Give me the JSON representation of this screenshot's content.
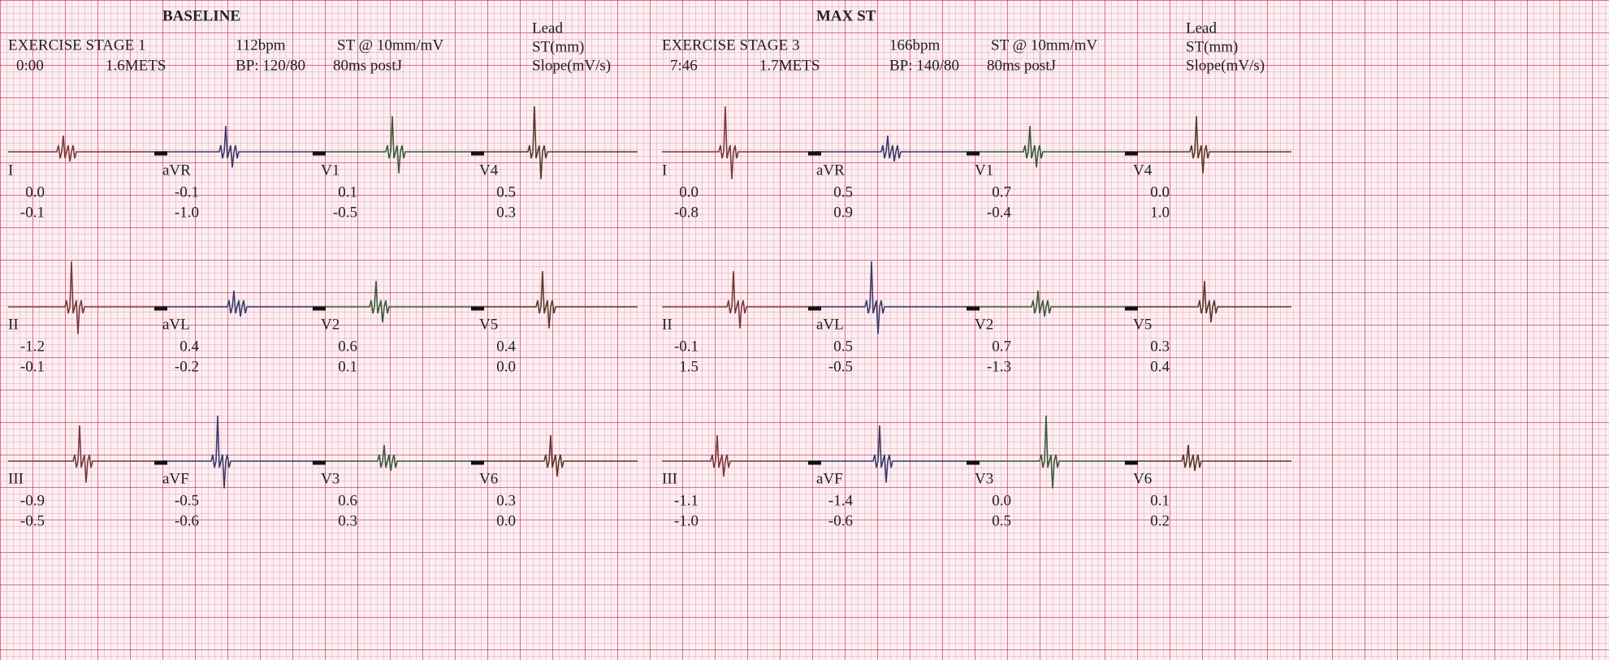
{
  "panels": [
    {
      "title": "BASELINE",
      "stage": "EXERCISE STAGE 1",
      "time": "0:00",
      "mets": "1.6METS",
      "hr": "112bpm",
      "bp": "BP: 120/80",
      "st_setting": "ST @ 10mm/mV",
      "post": "80ms postJ",
      "legend": [
        "Lead",
        "ST(mm)",
        "Slope(mV/s)"
      ],
      "leads": [
        {
          "name": "I",
          "st": "0.0",
          "slope": "-0.1"
        },
        {
          "name": "aVR",
          "st": "-0.1",
          "slope": "-1.0"
        },
        {
          "name": "V1",
          "st": "0.1",
          "slope": "-0.5"
        },
        {
          "name": "V4",
          "st": "0.5",
          "slope": "0.3"
        },
        {
          "name": "II",
          "st": "-1.2",
          "slope": "-0.1"
        },
        {
          "name": "aVL",
          "st": "0.4",
          "slope": "-0.2"
        },
        {
          "name": "V2",
          "st": "0.6",
          "slope": "0.1"
        },
        {
          "name": "V5",
          "st": "0.4",
          "slope": "0.0"
        },
        {
          "name": "III",
          "st": "-0.9",
          "slope": "-0.5"
        },
        {
          "name": "aVF",
          "st": "-0.5",
          "slope": "-0.6"
        },
        {
          "name": "V3",
          "st": "0.6",
          "slope": "0.3"
        },
        {
          "name": "V6",
          "st": "0.3",
          "slope": "0.0"
        }
      ]
    },
    {
      "title": "MAX ST",
      "stage": "EXERCISE STAGE 3",
      "time": "7:46",
      "mets": "1.7METS",
      "hr": "166bpm",
      "bp": "BP: 140/80",
      "st_setting": "ST @ 10mm/mV",
      "post": "80ms postJ",
      "legend": [
        "Lead",
        "ST(mm)",
        "Slope(mV/s)"
      ],
      "leads": [
        {
          "name": "I",
          "st": "0.0",
          "slope": "-0.8"
        },
        {
          "name": "aVR",
          "st": "0.5",
          "slope": "0.9"
        },
        {
          "name": "V1",
          "st": "0.7",
          "slope": "-0.4"
        },
        {
          "name": "V4",
          "st": "0.0",
          "slope": "1.0"
        },
        {
          "name": "II",
          "st": "-0.1",
          "slope": "1.5"
        },
        {
          "name": "aVL",
          "st": "0.5",
          "slope": "-0.5"
        },
        {
          "name": "V2",
          "st": "0.7",
          "slope": "-1.3"
        },
        {
          "name": "V5",
          "st": "0.3",
          "slope": "0.4"
        },
        {
          "name": "III",
          "st": "-1.1",
          "slope": "-1.0"
        },
        {
          "name": "aVF",
          "st": "-1.4",
          "slope": "-0.6"
        },
        {
          "name": "V3",
          "st": "0.0",
          "slope": "0.5"
        },
        {
          "name": "V6",
          "st": "0.1",
          "slope": "0.2"
        }
      ]
    }
  ]
}
